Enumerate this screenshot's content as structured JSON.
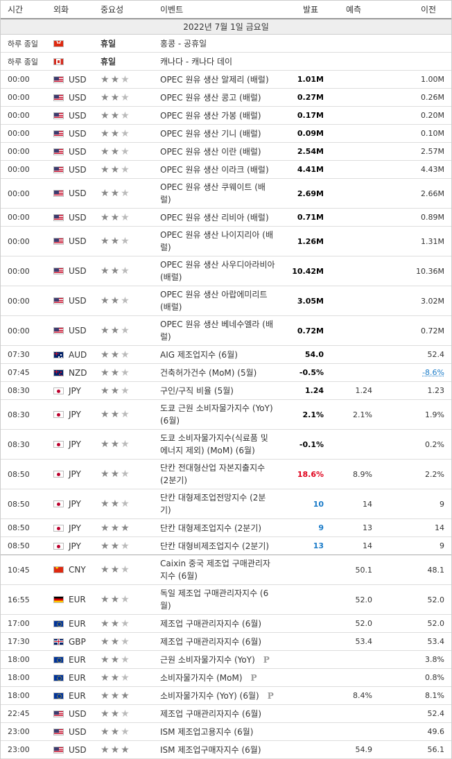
{
  "header": {
    "time": "시간",
    "currency": "외화",
    "importance": "중요성",
    "event": "이벤트",
    "actual": "발표",
    "forecast": "예측",
    "previous": "이전"
  },
  "date_band": "2022년 7월 1일 금요일",
  "rows": [
    {
      "time": "하루 종일",
      "flag": "hk",
      "cur": "",
      "imp": null,
      "holiday": "휴일",
      "event": "홍콩 - 공휴일",
      "actual": "",
      "forecast": "",
      "previous": "",
      "h": 1
    },
    {
      "time": "하루 종일",
      "flag": "ca",
      "cur": "",
      "imp": null,
      "holiday": "휴일",
      "event": "캐나다 - 캐나다 데이",
      "actual": "",
      "forecast": "",
      "previous": "",
      "h": 1
    },
    {
      "time": "00:00",
      "flag": "us",
      "cur": "USD",
      "imp": 2,
      "event": "OPEC 원유 생산 알제리 (배럴)",
      "actual": "1.01M",
      "forecast": "",
      "previous": "1.00M",
      "h": 1
    },
    {
      "time": "00:00",
      "flag": "us",
      "cur": "USD",
      "imp": 2,
      "event": "OPEC 원유 생산 콩고 (배럴)",
      "actual": "0.27M",
      "forecast": "",
      "previous": "0.26M",
      "h": 1
    },
    {
      "time": "00:00",
      "flag": "us",
      "cur": "USD",
      "imp": 2,
      "event": "OPEC 원유 생산 가봉 (배럴)",
      "actual": "0.17M",
      "forecast": "",
      "previous": "0.20M",
      "h": 1
    },
    {
      "time": "00:00",
      "flag": "us",
      "cur": "USD",
      "imp": 2,
      "event": "OPEC 원유 생산 기니 (배럴)",
      "actual": "0.09M",
      "forecast": "",
      "previous": "0.10M",
      "h": 1
    },
    {
      "time": "00:00",
      "flag": "us",
      "cur": "USD",
      "imp": 2,
      "event": "OPEC 원유 생산 이란 (배럴)",
      "actual": "2.54M",
      "forecast": "",
      "previous": "2.57M",
      "h": 1
    },
    {
      "time": "00:00",
      "flag": "us",
      "cur": "USD",
      "imp": 2,
      "event": "OPEC 원유 생산 이라크 (배럴)",
      "actual": "4.41M",
      "forecast": "",
      "previous": "4.43M",
      "h": 1
    },
    {
      "time": "00:00",
      "flag": "us",
      "cur": "USD",
      "imp": 2,
      "event": "OPEC 원유 생산 쿠웨이트 (배럴)",
      "actual": "2.69M",
      "forecast": "",
      "previous": "2.66M",
      "h": 2
    },
    {
      "time": "00:00",
      "flag": "us",
      "cur": "USD",
      "imp": 2,
      "event": "OPEC 원유 생산 리비아 (배럴)",
      "actual": "0.71M",
      "forecast": "",
      "previous": "0.89M",
      "h": 1
    },
    {
      "time": "00:00",
      "flag": "us",
      "cur": "USD",
      "imp": 2,
      "event": "OPEC 원유 생산 나이지리아 (배럴)",
      "actual": "1.26M",
      "forecast": "",
      "previous": "1.31M",
      "h": 2
    },
    {
      "time": "00:00",
      "flag": "us",
      "cur": "USD",
      "imp": 2,
      "event": "OPEC 원유 생산 사우디아라비아 (배럴)",
      "actual": "10.42M",
      "forecast": "",
      "previous": "10.36M",
      "h": 2
    },
    {
      "time": "00:00",
      "flag": "us",
      "cur": "USD",
      "imp": 2,
      "event": "OPEC 원유 생산 아랍에미리트 (배럴)",
      "actual": "3.05M",
      "forecast": "",
      "previous": "3.02M",
      "h": 2
    },
    {
      "time": "00:00",
      "flag": "us",
      "cur": "USD",
      "imp": 2,
      "event": "OPEC 원유 생산 베네수엘라 (배럴)",
      "actual": "0.72M",
      "forecast": "",
      "previous": "0.72M",
      "h": 2
    },
    {
      "time": "07:30",
      "flag": "au",
      "cur": "AUD",
      "imp": 2,
      "event": "AIG 제조업지수 (6월)",
      "actual": "54.0",
      "forecast": "",
      "previous": "52.4",
      "h": 1
    },
    {
      "time": "07:45",
      "flag": "nz",
      "cur": "NZD",
      "imp": 2,
      "event": "건축허가건수 (MoM) (5월)",
      "actual": "-0.5%",
      "forecast": "",
      "previous": "-8.6%",
      "prevStyle": "rev",
      "h": 1
    },
    {
      "time": "08:30",
      "flag": "jp",
      "cur": "JPY",
      "imp": 2,
      "event": "구인/구직 비율 (5월)",
      "actual": "1.24",
      "forecast": "1.24",
      "previous": "1.23",
      "h": 1
    },
    {
      "time": "08:30",
      "flag": "jp",
      "cur": "JPY",
      "imp": 2,
      "event": "도쿄 근원 소비자물가지수 (YoY) (6월)",
      "actual": "2.1%",
      "forecast": "2.1%",
      "previous": "1.9%",
      "h": 2
    },
    {
      "time": "08:30",
      "flag": "jp",
      "cur": "JPY",
      "imp": 2,
      "event": "도쿄 소비자물가지수(식료품 및 에너지 제외) (MoM) (6월)",
      "actual": "-0.1%",
      "forecast": "",
      "previous": "0.2%",
      "h": 2
    },
    {
      "time": "08:50",
      "flag": "jp",
      "cur": "JPY",
      "imp": 2,
      "event": "단칸 전대형산업 자본지출지수 (2분기)",
      "actual": "18.6%",
      "actStyle": "red",
      "forecast": "8.9%",
      "previous": "2.2%",
      "h": 2
    },
    {
      "time": "08:50",
      "flag": "jp",
      "cur": "JPY",
      "imp": 2,
      "event": "단칸 대형제조업전망지수 (2분기)",
      "actual": "10",
      "actStyle": "blue",
      "forecast": "14",
      "previous": "9",
      "h": 2
    },
    {
      "time": "08:50",
      "flag": "jp",
      "cur": "JPY",
      "imp": 3,
      "event": "단칸 대형제조업지수 (2분기)",
      "actual": "9",
      "actStyle": "blue",
      "forecast": "13",
      "previous": "14",
      "h": 1
    },
    {
      "time": "08:50",
      "flag": "jp",
      "cur": "JPY",
      "imp": 2,
      "event": "단칸 대형비제조업지수 (2분기)",
      "actual": "13",
      "actStyle": "blue",
      "forecast": "14",
      "previous": "9",
      "h": 1,
      "thick": true
    },
    {
      "time": "10:45",
      "flag": "cn",
      "cur": "CNY",
      "imp": 2,
      "event": "Caixin 중국 제조업 구매관리자지수 (6월)",
      "actual": "",
      "forecast": "50.1",
      "previous": "48.1",
      "h": 2
    },
    {
      "time": "16:55",
      "flag": "de",
      "cur": "EUR",
      "imp": 2,
      "event": "독일 제조업 구매관리자지수 (6월)",
      "actual": "",
      "forecast": "52.0",
      "previous": "52.0",
      "h": 2
    },
    {
      "time": "17:00",
      "flag": "eu",
      "cur": "EUR",
      "imp": 2,
      "event": "제조업 구매관리자지수 (6월)",
      "actual": "",
      "forecast": "52.0",
      "previous": "52.0",
      "h": 1
    },
    {
      "time": "17:30",
      "flag": "gb",
      "cur": "GBP",
      "imp": 2,
      "event": "제조업 구매관리자지수 (6월)",
      "actual": "",
      "forecast": "53.4",
      "previous": "53.4",
      "h": 1
    },
    {
      "time": "18:00",
      "flag": "eu",
      "cur": "EUR",
      "imp": 2,
      "event": "근원 소비자물가지수 (YoY)",
      "prelim": "P",
      "actual": "",
      "forecast": "",
      "previous": "3.8%",
      "h": 1
    },
    {
      "time": "18:00",
      "flag": "eu",
      "cur": "EUR",
      "imp": 2,
      "event": "소비자물가지수 (MoM)",
      "prelim": "P",
      "actual": "",
      "forecast": "",
      "previous": "0.8%",
      "h": 1
    },
    {
      "time": "18:00",
      "flag": "eu",
      "cur": "EUR",
      "imp": 3,
      "event": "소비자물가지수 (YoY) (6월)",
      "prelim": "P",
      "actual": "",
      "forecast": "8.4%",
      "previous": "8.1%",
      "h": 1
    },
    {
      "time": "22:45",
      "flag": "us",
      "cur": "USD",
      "imp": 2,
      "event": "제조업 구매관리자지수 (6월)",
      "actual": "",
      "forecast": "",
      "previous": "52.4",
      "h": 1
    },
    {
      "time": "23:00",
      "flag": "us",
      "cur": "USD",
      "imp": 2,
      "event": "ISM 제조업고용지수 (6월)",
      "actual": "",
      "forecast": "",
      "previous": "49.6",
      "h": 1
    },
    {
      "time": "23:00",
      "flag": "us",
      "cur": "USD",
      "imp": 3,
      "event": "ISM 제조업구매자지수 (6월)",
      "actual": "",
      "forecast": "54.9",
      "previous": "56.1",
      "h": 1
    }
  ],
  "colors": {
    "actual_red": "#e0001b",
    "actual_blue": "#1a7bc8",
    "star_on": "#888888",
    "star_off": "#bbbbbb"
  }
}
